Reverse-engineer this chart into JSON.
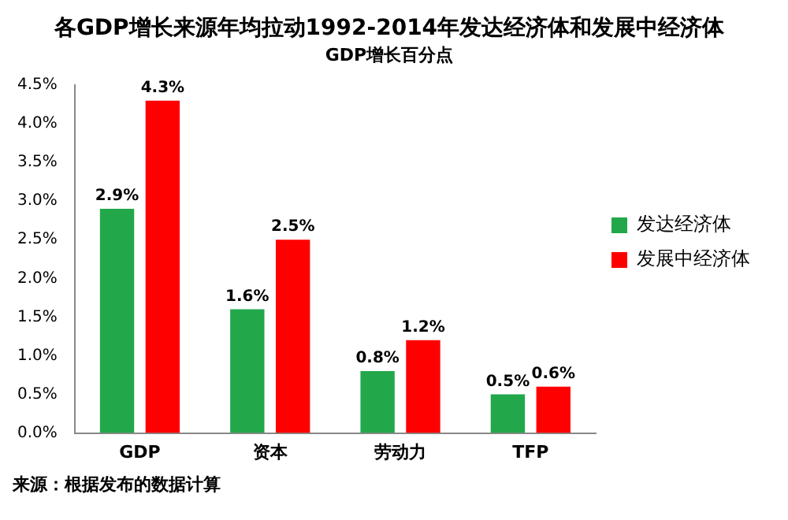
{
  "chart_data": {
    "type": "bar",
    "title": "各GDP增长来源年均拉动1992-2014年发达经济体和发展中经济体",
    "subtitle": "GDP增长百分点",
    "categories": [
      "GDP",
      "资本",
      "劳动力",
      "TFP"
    ],
    "series": [
      {
        "name": "发达经济体",
        "color": "#22a84a",
        "values": [
          2.9,
          1.6,
          0.8,
          0.5
        ],
        "value_labels": [
          "2.9%",
          "1.6%",
          "0.8%",
          "0.5%"
        ]
      },
      {
        "name": "发展中经济体",
        "color": "#ff0000",
        "values": [
          4.3,
          2.5,
          1.2,
          0.6
        ],
        "value_labels": [
          "4.3%",
          "2.5%",
          "1.2%",
          "0.6%"
        ]
      }
    ],
    "ylim": [
      0,
      4.5
    ],
    "yticks": [
      {
        "value": 0,
        "label": "0.0%"
      },
      {
        "value": 0.5,
        "label": "0.5%"
      },
      {
        "value": 1,
        "label": "1.0%"
      },
      {
        "value": 1.5,
        "label": "1.5%"
      },
      {
        "value": 2,
        "label": "2.0%"
      },
      {
        "value": 2.5,
        "label": "2.5%"
      },
      {
        "value": 3,
        "label": "3.0%"
      },
      {
        "value": 3.5,
        "label": "3.5%"
      },
      {
        "value": 4,
        "label": "4.0%"
      },
      {
        "value": 4.5,
        "label": "4.5%"
      }
    ],
    "grid": false,
    "legend": "right",
    "annotations": [
      "来源：根据发布的数据计算"
    ]
  }
}
